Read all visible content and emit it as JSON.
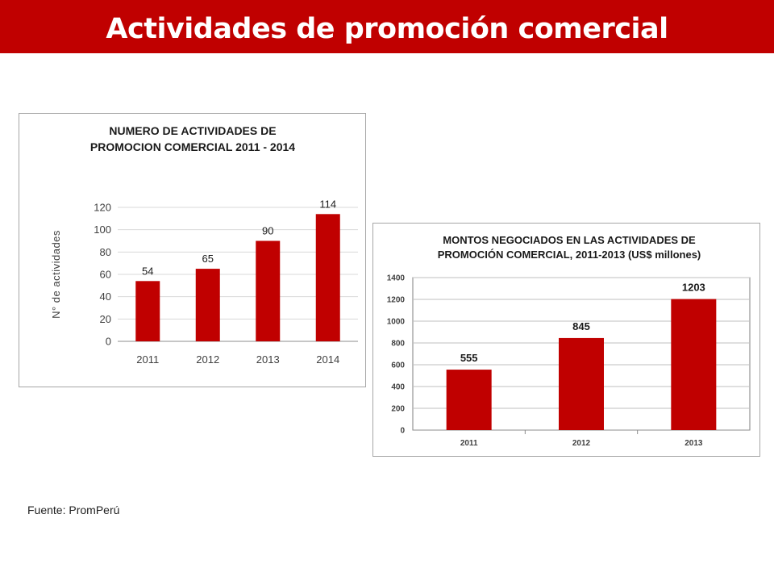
{
  "header": {
    "title": "Actividades de promoción comercial"
  },
  "colors": {
    "banner": "#c00000",
    "bar": "#c00000",
    "text": "#404040"
  },
  "footer": {
    "source": "Fuente: PromPerú"
  },
  "chart_data": [
    {
      "type": "bar",
      "title_lines": [
        "NUMERO DE ACTIVIDADES DE",
        "PROMOCION COMERCIAL 2011 - 2014"
      ],
      "categories": [
        "2011",
        "2012",
        "2013",
        "2014"
      ],
      "values": [
        54,
        65,
        90,
        114
      ],
      "xlabel": "",
      "ylabel": "N° de actividades",
      "ylim": [
        0,
        120
      ],
      "yticks": [
        0,
        20,
        40,
        60,
        80,
        100,
        120
      ],
      "grid": true,
      "data_labels": true
    },
    {
      "type": "bar",
      "title_lines": [
        "MONTOS NEGOCIADOS EN LAS ACTIVIDADES DE",
        "PROMOCIÓN COMERCIAL, 2011-2013 (US$ millones)"
      ],
      "categories": [
        "2011",
        "2012",
        "2013"
      ],
      "values": [
        555,
        845,
        1203
      ],
      "xlabel": "",
      "ylabel": "",
      "ylim": [
        0,
        1400
      ],
      "yticks": [
        0,
        200,
        400,
        600,
        800,
        1000,
        1200,
        1400
      ],
      "grid": true,
      "data_labels": true
    }
  ]
}
